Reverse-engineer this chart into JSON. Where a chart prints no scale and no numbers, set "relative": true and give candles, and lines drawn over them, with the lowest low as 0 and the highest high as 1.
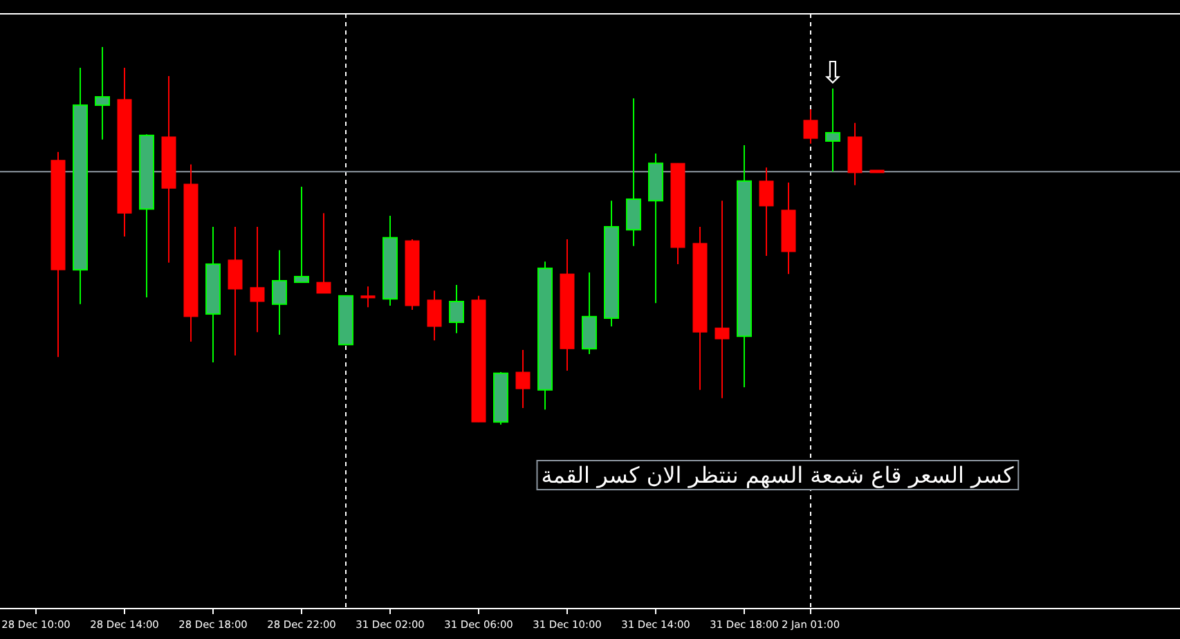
{
  "chart_data": {
    "type": "candlestick",
    "relative": true,
    "categories": [
      "28 Dec 10:00",
      null,
      null,
      null,
      "28 Dec 14:00",
      null,
      null,
      null,
      "28 Dec 18:00",
      null,
      null,
      null,
      "28 Dec 22:00",
      null,
      null,
      null,
      "31 Dec 02:00",
      null,
      null,
      null,
      "31 Dec 06:00",
      null,
      null,
      null,
      "31 Dec 10:00",
      null,
      null,
      null,
      "31 Dec 14:00",
      null,
      null,
      null,
      "31 Dec 18:00",
      null,
      null,
      "2 Jan 01:00",
      null,
      null,
      null
    ],
    "ohlc": [
      null,
      [
        0.7,
        0.722,
        0.179,
        0.41
      ],
      [
        0.41,
        0.945,
        0.319,
        0.846
      ],
      [
        0.846,
        1.0,
        0.755,
        0.868
      ],
      [
        0.861,
        0.945,
        0.498,
        0.56
      ],
      [
        0.571,
        0.769,
        0.337,
        0.766
      ],
      [
        0.762,
        0.923,
        0.429,
        0.626
      ],
      [
        0.637,
        0.689,
        0.22,
        0.286
      ],
      [
        0.293,
        0.524,
        0.165,
        0.425
      ],
      [
        0.436,
        0.524,
        0.183,
        0.359
      ],
      [
        0.363,
        0.524,
        0.245,
        0.326
      ],
      [
        0.319,
        0.462,
        0.238,
        0.381
      ],
      [
        0.377,
        0.63,
        0.377,
        0.392
      ],
      [
        0.377,
        0.56,
        0.348,
        0.348
      ],
      [
        0.212,
        0.341,
        0.212,
        0.341
      ],
      [
        0.341,
        0.366,
        0.311,
        0.341
      ],
      [
        0.333,
        0.553,
        0.315,
        0.495
      ],
      [
        0.487,
        0.491,
        0.304,
        0.315
      ],
      [
        0.33,
        0.355,
        0.223,
        0.26
      ],
      [
        0.271,
        0.37,
        0.242,
        0.326
      ],
      [
        0.33,
        0.341,
        0.007,
        0.007
      ],
      [
        0.007,
        0.139,
        0.0,
        0.136
      ],
      [
        0.139,
        0.198,
        0.044,
        0.095
      ],
      [
        0.092,
        0.432,
        0.04,
        0.414
      ],
      [
        0.399,
        0.491,
        0.143,
        0.201
      ],
      [
        0.201,
        0.403,
        0.187,
        0.286
      ],
      [
        0.282,
        0.593,
        0.26,
        0.524
      ],
      [
        0.516,
        0.864,
        0.473,
        0.597
      ],
      [
        0.593,
        0.718,
        0.322,
        0.692
      ],
      [
        0.692,
        0.692,
        0.425,
        0.469
      ],
      [
        0.48,
        0.524,
        0.092,
        0.245
      ],
      [
        0.256,
        0.593,
        0.07,
        0.227
      ],
      [
        0.234,
        0.74,
        0.099,
        0.645
      ],
      [
        0.645,
        0.681,
        0.447,
        0.579
      ],
      [
        0.568,
        0.641,
        0.399,
        0.458
      ],
      [
        0.806,
        0.835,
        0.744,
        0.758
      ],
      [
        0.751,
        0.89,
        0.67,
        0.773
      ],
      [
        0.762,
        0.799,
        0.634,
        0.667
      ],
      [
        0.674,
        0.674,
        0.667,
        0.667
      ]
    ],
    "colors": [
      null,
      "#ff0000",
      "#3cb371",
      "#3cb371",
      "#ff0000",
      "#3cb371",
      "#ff0000",
      "#ff0000",
      "#3cb371",
      "#ff0000",
      "#ff0000",
      "#3cb371",
      "#3cb371",
      "#ff0000",
      "#3cb371",
      "#ff0000",
      "#3cb371",
      "#ff0000",
      "#ff0000",
      "#3cb371",
      "#ff0000",
      "#3cb371",
      "#ff0000",
      "#3cb371",
      "#ff0000",
      "#3cb371",
      "#3cb371",
      "#3cb371",
      "#3cb371",
      "#ff0000",
      "#ff0000",
      "#ff0000",
      "#3cb371",
      "#ff0000",
      "#ff0000",
      "#ff0000",
      "#3cb371",
      "#ff0000",
      "#ff0000"
    ],
    "ref_lines": [
      {
        "axis": "y",
        "value": 0.67,
        "color": "#8c96a0",
        "line_style": "solid"
      }
    ],
    "annotations": [
      "كسر السعر قاع شمعة السهم ننتظر الان كسر القمة",
      "⇩"
    ]
  }
}
